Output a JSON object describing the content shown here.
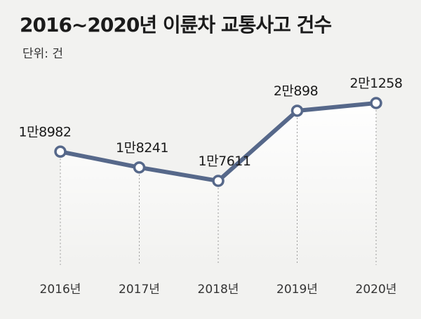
{
  "title": "2016~2020년 이륜차 교통사고 건수",
  "unit_label": "단위: 건",
  "chart_data": {
    "type": "line",
    "title": "2016~2020년 이륜차 교통사고 건수",
    "unit": "단위: 건",
    "x": [
      "2016년",
      "2017년",
      "2018년",
      "2019년",
      "2020년"
    ],
    "series": [
      {
        "values": [
          18982,
          18241,
          17611,
          20898,
          21258
        ],
        "data_labels": [
          "1만8982",
          "1만8241",
          "1만7611",
          "2만898",
          "2만1258"
        ]
      }
    ],
    "grid": false,
    "colors": {
      "line": "#56688a",
      "marker_fill": "#ffffff",
      "drop_line": "#9a9a9a"
    }
  }
}
